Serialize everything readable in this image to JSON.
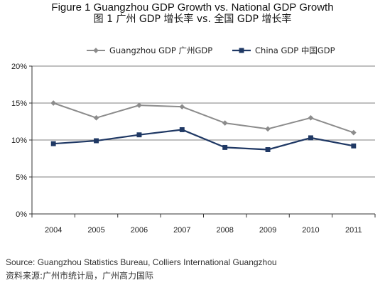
{
  "header": {
    "title": "Figure 1 Guangzhou GDP Growth vs. National GDP Growth",
    "subtitle": "图 1 广州 GDP 增长率 vs. 全国 GDP 增长率"
  },
  "colors": {
    "guangzhou": "#8c8c8c",
    "china": "#1f3864",
    "axis": "#333333",
    "grid": "#7f7f7f"
  },
  "chart_data": {
    "type": "line",
    "title": "Figure 1 Guangzhou GDP Growth vs. National GDP Growth",
    "xlabel": "",
    "ylabel": "",
    "categories": [
      "2004",
      "2005",
      "2006",
      "2007",
      "2008",
      "2009",
      "2010",
      "2011"
    ],
    "y_ticks": [
      "0%",
      "5%",
      "10%",
      "15%",
      "20%"
    ],
    "ylim": [
      0,
      20
    ],
    "grid": "horizontal",
    "legend_position": "top",
    "series": [
      {
        "name": "Guangzhou GDP 广州GDP",
        "marker": "diamond",
        "values": [
          15.0,
          13.0,
          14.7,
          14.5,
          12.3,
          11.5,
          13.0,
          11.0
        ]
      },
      {
        "name": "China GDP 中国GDP",
        "marker": "square",
        "values": [
          9.5,
          9.9,
          10.7,
          11.4,
          9.0,
          8.7,
          10.3,
          9.2
        ]
      }
    ]
  },
  "footer": {
    "source_en": "Source: Guangzhou Statistics Bureau, Colliers International Guangzhou",
    "source_cn": "资料来源:广州市统计局，广州高力国际"
  }
}
